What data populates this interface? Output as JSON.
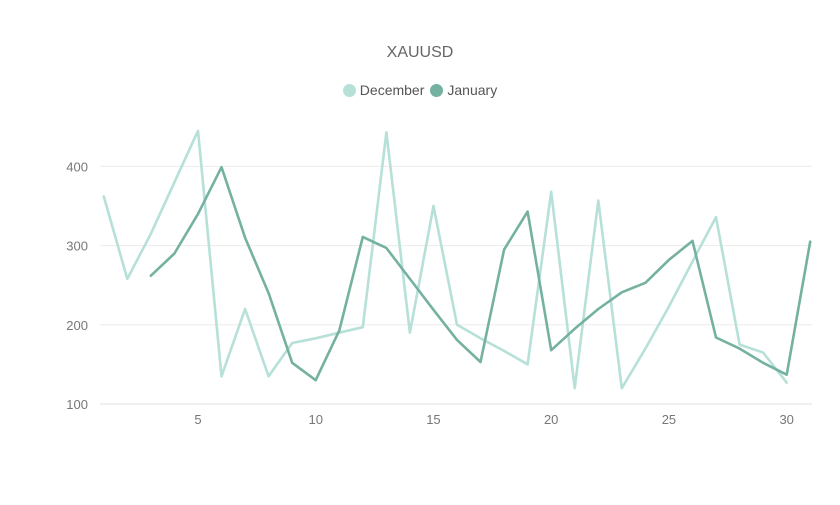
{
  "chart_data": {
    "type": "line",
    "title": "XAUUSD",
    "xlabel": "",
    "ylabel": "",
    "x_ticks": [
      5,
      10,
      15,
      20,
      25,
      30
    ],
    "y_ticks": [
      100,
      200,
      300,
      400
    ],
    "xlim": [
      0.5,
      31.5
    ],
    "ylim": [
      100,
      470
    ],
    "grid": true,
    "legend_position": "top-center",
    "series": [
      {
        "name": "December",
        "color": "#b6e0d8",
        "x": [
          1,
          2,
          3,
          4,
          5,
          6,
          7,
          8,
          9,
          10,
          11,
          12,
          13,
          14,
          15,
          16,
          17,
          18,
          19,
          20,
          21,
          22,
          23,
          24,
          25,
          26,
          27,
          28,
          29,
          30
        ],
        "values": [
          362,
          258,
          315,
          380,
          445,
          135,
          220,
          135,
          177,
          183,
          190,
          197,
          443,
          190,
          350,
          200,
          183,
          167,
          150,
          368,
          120,
          357,
          120,
          170,
          223,
          280,
          336,
          175,
          165,
          127
        ]
      },
      {
        "name": "January",
        "color": "#75b1a0",
        "x": [
          3,
          4,
          5,
          6,
          7,
          8,
          9,
          10,
          11,
          12,
          13,
          14,
          15,
          16,
          17,
          18,
          19,
          20,
          21,
          22,
          23,
          24,
          25,
          26,
          27,
          28,
          29,
          30,
          31
        ],
        "values": [
          262,
          290,
          340,
          399,
          310,
          240,
          152,
          130,
          193,
          311,
          297,
          258,
          219,
          181,
          153,
          295,
          343,
          168,
          195,
          220,
          241,
          253,
          282,
          306,
          184,
          170,
          152,
          137,
          305
        ]
      }
    ]
  }
}
